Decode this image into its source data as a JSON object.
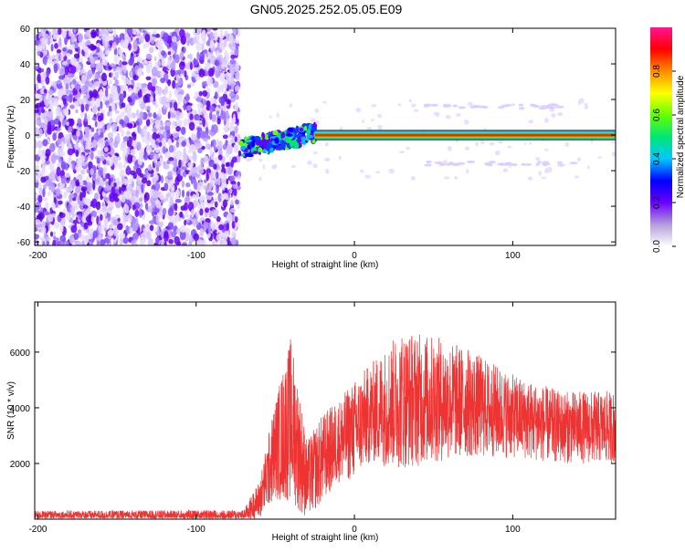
{
  "title": "GN05.2025.252.05.05.E09",
  "chart_data": [
    {
      "type": "heatmap",
      "xlabel": "Height of straight line (km)",
      "ylabel": "Frequency (Hz)",
      "xlim": [
        -202,
        165
      ],
      "ylim": [
        -62,
        60
      ],
      "xticks": [
        -200,
        -100,
        0,
        100
      ],
      "yticks": [
        -60,
        -40,
        -20,
        0,
        20,
        40,
        60
      ],
      "colorbar": {
        "label": "Normalized spectral amplitude",
        "range": [
          0,
          1
        ],
        "ticks": [
          "0.0",
          "0.2",
          "0.4",
          "0.6",
          "0.8"
        ],
        "colors": [
          "#ffffff",
          "#b39ddb",
          "#6a00ff",
          "#0000ff",
          "#00c8ff",
          "#00e676",
          "#66ff00",
          "#ffff00",
          "#ff8c00",
          "#ff0000",
          "#ff1493"
        ]
      },
      "regions": [
        {
          "description_x": [
            -202,
            -73
          ],
          "freq": [
            -62,
            60
          ],
          "amplitude": 0.15
        },
        {
          "description_x": [
            -73,
            -25
          ],
          "freq": [
            -12,
            6
          ],
          "amplitude": 0.45
        },
        {
          "description_x": [
            -25,
            165
          ],
          "freq": [
            -1,
            1
          ],
          "amplitude": 0.9
        }
      ]
    },
    {
      "type": "line",
      "xlabel": "Height of straight line (km)",
      "ylabel": "SNR (10 * v/v)",
      "xlim": [
        -202,
        165
      ],
      "ylim": [
        0,
        7800
      ],
      "xticks": [
        -200,
        -100,
        0,
        100
      ],
      "yticks": [
        2000,
        4000,
        6000
      ],
      "color": "#ee3333",
      "envelope": [
        {
          "x": -202,
          "mean": 150,
          "spread": 150
        },
        {
          "x": -70,
          "mean": 150,
          "spread": 180
        },
        {
          "x": -60,
          "mean": 700,
          "spread": 700
        },
        {
          "x": -50,
          "mean": 2500,
          "spread": 1800
        },
        {
          "x": -40,
          "mean": 3600,
          "spread": 3000
        },
        {
          "x": -30,
          "mean": 1400,
          "spread": 1400
        },
        {
          "x": -20,
          "mean": 2200,
          "spread": 1600
        },
        {
          "x": -10,
          "mean": 2800,
          "spread": 1500
        },
        {
          "x": 0,
          "mean": 3200,
          "spread": 1800
        },
        {
          "x": 10,
          "mean": 3800,
          "spread": 1800
        },
        {
          "x": 30,
          "mean": 4300,
          "spread": 2500
        },
        {
          "x": 50,
          "mean": 4300,
          "spread": 2300
        },
        {
          "x": 70,
          "mean": 4200,
          "spread": 2000
        },
        {
          "x": 100,
          "mean": 3700,
          "spread": 1500
        },
        {
          "x": 130,
          "mean": 3300,
          "spread": 1300
        },
        {
          "x": 165,
          "mean": 3300,
          "spread": 1300
        }
      ]
    }
  ]
}
